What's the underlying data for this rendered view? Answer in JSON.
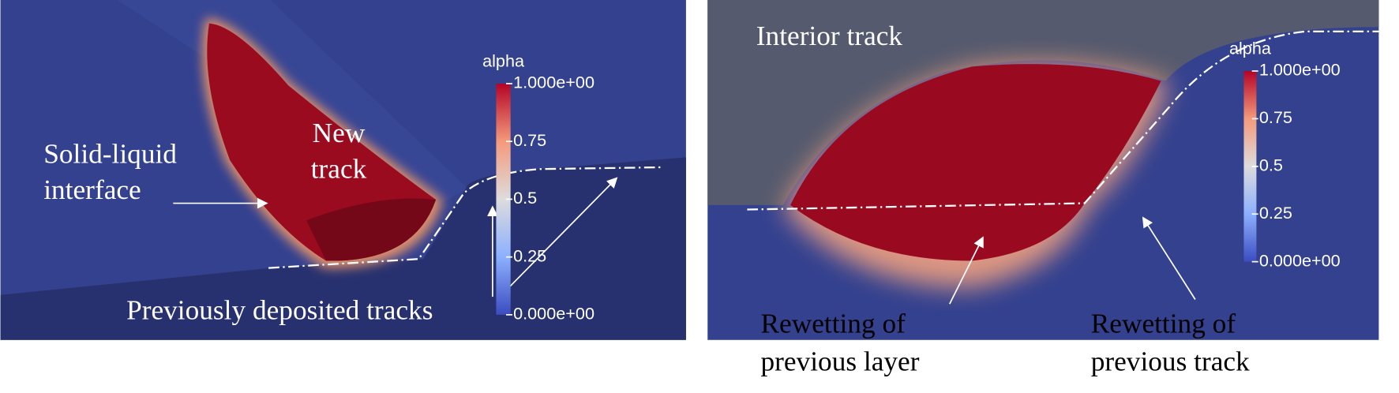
{
  "panels": [
    {
      "annotations": [
        {
          "lines": [
            "Solid-liquid",
            "interface"
          ]
        },
        {
          "lines": [
            "New",
            "track"
          ]
        },
        {
          "lines": [
            "Previously deposited tracks"
          ]
        }
      ],
      "colorbar": {
        "title": "alpha",
        "ticks": [
          {
            "value": 1,
            "label": "1.000e+00"
          },
          0.75,
          0.5,
          0.25,
          {
            "value": 0,
            "label": "0.000e+00"
          }
        ]
      }
    },
    {
      "annotations": [
        {
          "lines": [
            "Interior track"
          ]
        },
        {
          "lines": [
            "Rewetting of",
            "previous layer"
          ]
        },
        {
          "lines": [
            "Rewetting of",
            "previous track"
          ]
        }
      ],
      "colorbar": {
        "title": "alpha",
        "ticks": [
          {
            "value": 1,
            "label": "1.000e+00"
          },
          0.75,
          0.5,
          0.25,
          {
            "value": 0,
            "label": "0.000e+00"
          }
        ]
      }
    }
  ]
}
